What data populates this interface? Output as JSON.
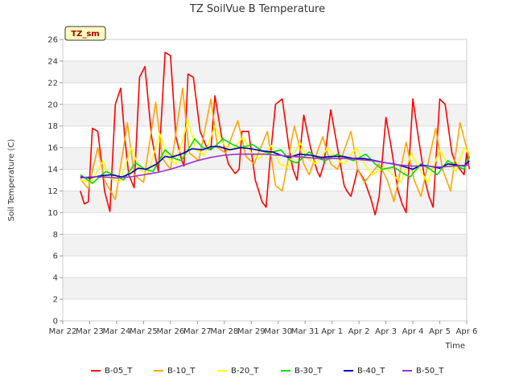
{
  "chart_data": {
    "type": "line",
    "title": "TZ SoilVue B Temperature",
    "xlabel": "Time",
    "ylabel": "Soil Temperature (C)",
    "station_tag": "TZ_sm",
    "ylim": [
      0,
      26
    ],
    "yticks": [
      0,
      2,
      4,
      6,
      8,
      10,
      12,
      14,
      16,
      18,
      20,
      22,
      24,
      26
    ],
    "xlim": [
      0,
      15
    ],
    "xticks": [
      "Mar 22",
      "Mar 23",
      "Mar 24",
      "Mar 25",
      "Mar 26",
      "Mar 27",
      "Mar 28",
      "Mar 29",
      "Mar 30",
      "Mar 31",
      "Apr 1",
      "Apr 2",
      "Apr 3",
      "Apr 4",
      "Apr 5",
      "Apr 6"
    ],
    "grid": true,
    "legend_position": "bottom",
    "x_units": "days since Mar 22",
    "series": [
      {
        "name": "B-05_T",
        "color": "#ff0000",
        "x": [
          0.65,
          0.8,
          0.95,
          1.1,
          1.3,
          1.45,
          1.55,
          1.75,
          1.95,
          2.15,
          2.3,
          2.45,
          2.65,
          2.85,
          3.05,
          3.3,
          3.45,
          3.55,
          3.8,
          4.0,
          4.2,
          4.4,
          4.5,
          4.65,
          4.85,
          5.1,
          5.35,
          5.5,
          5.65,
          5.9,
          6.15,
          6.4,
          6.55,
          6.65,
          6.9,
          7.15,
          7.4,
          7.55,
          7.7,
          7.9,
          8.15,
          8.4,
          8.55,
          8.7,
          8.95,
          9.2,
          9.45,
          9.55,
          9.7,
          9.95,
          10.2,
          10.45,
          10.55,
          10.7,
          10.95,
          11.2,
          11.45,
          11.6,
          11.75,
          12.0,
          12.2,
          12.45,
          12.6,
          12.75,
          13.0,
          13.2,
          13.45,
          13.6,
          13.75,
          14.0,
          14.2,
          14.45,
          14.6,
          14.75,
          14.9,
          15.0,
          15.1
        ],
        "y": [
          12.0,
          10.8,
          11.0,
          17.8,
          17.5,
          14.5,
          12.0,
          10.1,
          20.0,
          21.5,
          17.0,
          13.5,
          12.3,
          22.5,
          23.5,
          17.0,
          15.0,
          13.8,
          24.8,
          24.5,
          17.0,
          15.0,
          14.3,
          22.8,
          22.5,
          17.5,
          16.0,
          15.8,
          20.8,
          17.0,
          14.5,
          13.6,
          14.0,
          17.5,
          17.5,
          13.0,
          11.0,
          10.5,
          15.0,
          20.0,
          20.5,
          16.0,
          14.0,
          13.0,
          19.0,
          16.0,
          13.8,
          13.3,
          14.5,
          19.5,
          16.0,
          12.5,
          12.0,
          11.5,
          14.0,
          13.0,
          11.2,
          9.8,
          11.5,
          18.8,
          16.0,
          12.0,
          10.8,
          10.0,
          20.5,
          17.0,
          13.0,
          11.5,
          10.5,
          20.5,
          20.0,
          15.5,
          14.5,
          14.0,
          13.5,
          15.5,
          14.0
        ]
      },
      {
        "name": "B-10_T",
        "color": "#ffa500",
        "x": [
          0.65,
          0.95,
          1.3,
          1.55,
          1.95,
          2.4,
          2.65,
          3.0,
          3.45,
          3.7,
          4.0,
          4.45,
          4.7,
          5.05,
          5.5,
          5.75,
          6.05,
          6.5,
          6.8,
          7.1,
          7.6,
          7.9,
          8.15,
          8.6,
          8.95,
          9.15,
          9.65,
          9.95,
          10.2,
          10.7,
          10.95,
          11.2,
          11.75,
          12.05,
          12.3,
          12.75,
          13.05,
          13.3,
          13.85,
          14.1,
          14.4,
          14.75,
          15.1
        ],
        "y": [
          13.1,
          12.2,
          16.0,
          13.0,
          11.2,
          18.3,
          13.5,
          12.8,
          20.2,
          15.0,
          14.0,
          21.5,
          15.5,
          14.8,
          20.5,
          16.0,
          15.5,
          18.5,
          15.2,
          14.5,
          17.5,
          12.5,
          12.0,
          18.0,
          14.5,
          13.5,
          17.0,
          14.5,
          14.0,
          17.5,
          14.0,
          12.8,
          14.5,
          13.0,
          11.0,
          16.5,
          13.0,
          11.5,
          17.8,
          14.0,
          12.0,
          18.3,
          15.0
        ]
      },
      {
        "name": "B-20_T",
        "color": "#ffff00",
        "x": [
          0.65,
          1.05,
          1.5,
          1.75,
          2.1,
          2.55,
          2.85,
          3.15,
          3.6,
          3.9,
          4.2,
          4.65,
          4.95,
          5.25,
          5.65,
          6.0,
          6.3,
          6.7,
          7.0,
          7.3,
          7.75,
          8.05,
          8.35,
          8.8,
          9.1,
          9.4,
          9.85,
          10.15,
          10.45,
          10.9,
          11.2,
          11.5,
          11.95,
          12.25,
          12.55,
          12.95,
          13.25,
          13.55,
          14.0,
          14.3,
          14.6,
          14.9,
          15.1
        ],
        "y": [
          13.0,
          12.8,
          14.8,
          13.2,
          12.8,
          16.0,
          14.0,
          13.5,
          17.3,
          15.0,
          14.5,
          18.5,
          15.8,
          15.3,
          18.0,
          16.2,
          15.8,
          17.0,
          15.5,
          15.0,
          16.2,
          14.5,
          14.2,
          16.5,
          15.0,
          14.5,
          16.0,
          15.0,
          14.5,
          16.0,
          14.5,
          13.5,
          14.2,
          13.5,
          12.8,
          15.5,
          14.0,
          12.8,
          15.8,
          14.5,
          13.8,
          16.0,
          15.5
        ]
      },
      {
        "name": "B-30_T",
        "color": "#00dd00",
        "x": [
          0.65,
          1.1,
          1.6,
          2.0,
          2.25,
          2.7,
          3.05,
          3.35,
          3.8,
          4.15,
          4.4,
          4.9,
          5.2,
          5.5,
          5.95,
          6.3,
          6.6,
          7.05,
          7.4,
          7.65,
          8.1,
          8.45,
          8.7,
          9.15,
          9.5,
          9.75,
          10.2,
          10.55,
          10.8,
          11.25,
          11.6,
          11.85,
          12.3,
          12.65,
          12.9,
          13.3,
          13.65,
          13.9,
          14.3,
          14.65,
          14.9,
          15.1
        ],
        "y": [
          13.5,
          12.7,
          13.8,
          13.4,
          13.0,
          14.6,
          14.0,
          13.8,
          15.8,
          15.0,
          14.8,
          16.8,
          16.0,
          15.8,
          16.8,
          16.3,
          16.0,
          16.3,
          15.7,
          15.5,
          15.8,
          14.8,
          14.6,
          15.6,
          15.0,
          14.8,
          15.4,
          15.0,
          14.8,
          15.4,
          14.5,
          14.0,
          14.2,
          13.6,
          13.3,
          14.5,
          14.0,
          13.5,
          14.8,
          14.3,
          14.0,
          15.2
        ]
      },
      {
        "name": "B-40_T",
        "color": "#0000bb",
        "x": [
          0.65,
          1.0,
          1.4,
          1.8,
          2.2,
          2.5,
          2.8,
          3.1,
          3.5,
          3.8,
          4.0,
          4.4,
          4.8,
          5.2,
          5.5,
          5.8,
          6.2,
          6.6,
          7.0,
          7.4,
          7.8,
          8.1,
          8.4,
          8.8,
          9.2,
          9.6,
          10.0,
          10.4,
          10.8,
          11.2,
          11.6,
          12.0,
          12.3,
          12.6,
          13.0,
          13.3,
          13.6,
          14.0,
          14.3,
          14.6,
          14.9,
          15.1
        ],
        "y": [
          13.3,
          13.2,
          13.4,
          13.5,
          13.3,
          13.6,
          14.1,
          14.0,
          14.5,
          15.2,
          15.1,
          15.4,
          15.9,
          15.8,
          16.1,
          16.1,
          15.8,
          16.0,
          15.9,
          15.7,
          15.6,
          15.3,
          15.1,
          15.4,
          15.3,
          15.1,
          15.2,
          15.2,
          15.0,
          15.0,
          14.8,
          14.6,
          14.5,
          14.3,
          14.0,
          14.4,
          14.3,
          14.1,
          14.5,
          14.4,
          14.3,
          14.8
        ]
      },
      {
        "name": "B-50_T",
        "color": "#9933cc",
        "x": [
          0.65,
          1.0,
          1.5,
          2.0,
          2.5,
          3.0,
          3.5,
          4.0,
          4.5,
          5.0,
          5.5,
          6.0,
          6.5,
          7.0,
          7.5,
          8.0,
          8.5,
          9.0,
          9.5,
          10.0,
          10.5,
          11.0,
          11.5,
          12.0,
          12.5,
          13.0,
          13.5,
          14.0,
          14.5,
          15.1
        ],
        "y": [
          13.2,
          13.3,
          13.3,
          13.2,
          13.3,
          13.5,
          13.7,
          14.0,
          14.4,
          14.8,
          15.1,
          15.3,
          15.4,
          15.4,
          15.4,
          15.3,
          15.2,
          15.1,
          15.0,
          15.0,
          15.0,
          14.9,
          14.8,
          14.6,
          14.4,
          14.3,
          14.3,
          14.2,
          14.3,
          14.4
        ]
      }
    ]
  }
}
